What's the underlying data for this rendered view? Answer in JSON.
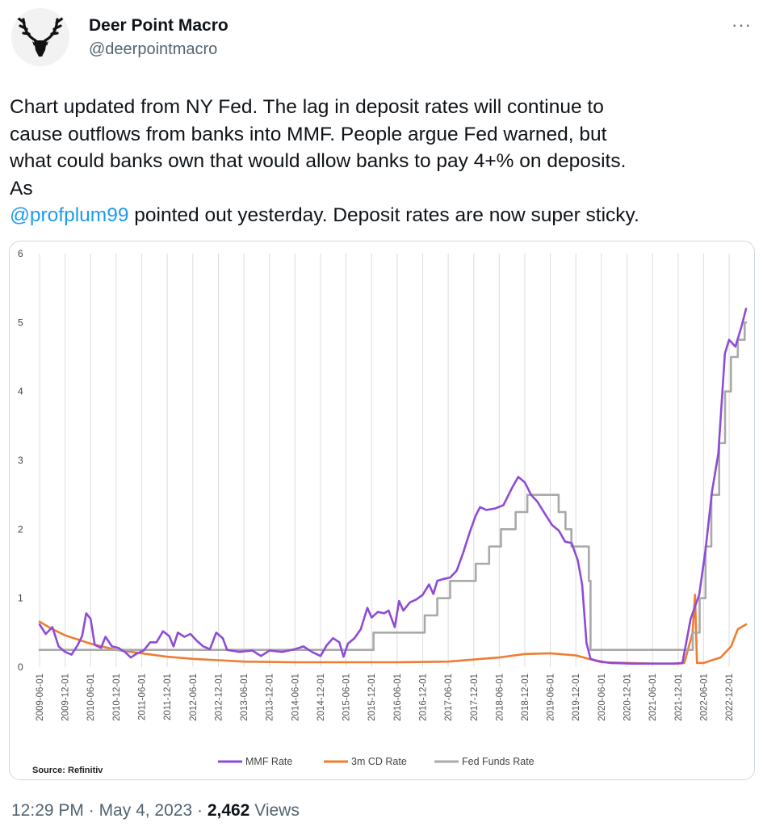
{
  "author": {
    "name": "Deer Point Macro",
    "handle": "@deerpointmacro",
    "avatar_icon": "deer-head-icon"
  },
  "more_icon": "more-icon",
  "tweet": {
    "line1": "Chart updated  from NY Fed. The lag in deposit rates will continue to",
    "line2": "cause outflows from banks into MMF. People argue Fed warned, but",
    "line3": "what could banks own that would allow banks to pay 4+% on deposits.",
    "line4": "As",
    "mention": "@profplum99",
    "line5_rest": " pointed out yesterday. Deposit rates are now super sticky."
  },
  "meta": {
    "time": "12:29 PM",
    "sep1": " · ",
    "date": "May 4, 2023",
    "sep2": " · ",
    "views_count": "2,462",
    "views_label": " Views"
  },
  "chart_data": {
    "type": "line",
    "source": "Source: Refinitiv",
    "ylim": [
      0,
      6
    ],
    "yticks": [
      "0",
      "1",
      "2",
      "3",
      "4",
      "5",
      "6"
    ],
    "xlim": [
      "2009-06-01",
      "2023-04-01"
    ],
    "xticks": [
      "2009-06-01",
      "2009-12-01",
      "2010-06-01",
      "2010-12-01",
      "2011-06-01",
      "2011-12-01",
      "2012-06-01",
      "2012-12-01",
      "2013-06-01",
      "2013-12-01",
      "2014-06-01",
      "2014-12-01",
      "2015-06-01",
      "2015-12-01",
      "2016-06-01",
      "2016-12-01",
      "2017-06-01",
      "2017-12-01",
      "2018-06-01",
      "2018-12-01",
      "2019-06-01",
      "2019-12-01",
      "2020-06-01",
      "2020-12-01",
      "2021-06-01",
      "2021-12-01",
      "2022-06-01",
      "2022-12-01"
    ],
    "grid": "vertical",
    "legend_position": "bottom",
    "series": [
      {
        "name": "MMF Rate",
        "color": "#8e4bd6",
        "points": [
          [
            "2009-06-01",
            0.62
          ],
          [
            "2009-07-15",
            0.48
          ],
          [
            "2009-09-01",
            0.58
          ],
          [
            "2009-10-15",
            0.3
          ],
          [
            "2009-12-01",
            0.22
          ],
          [
            "2010-01-15",
            0.18
          ],
          [
            "2010-03-01",
            0.32
          ],
          [
            "2010-04-01",
            0.45
          ],
          [
            "2010-05-01",
            0.78
          ],
          [
            "2010-06-01",
            0.7
          ],
          [
            "2010-07-01",
            0.32
          ],
          [
            "2010-08-15",
            0.28
          ],
          [
            "2010-09-15",
            0.44
          ],
          [
            "2010-11-01",
            0.3
          ],
          [
            "2010-12-15",
            0.28
          ],
          [
            "2011-02-01",
            0.22
          ],
          [
            "2011-03-15",
            0.14
          ],
          [
            "2011-05-01",
            0.2
          ],
          [
            "2011-06-15",
            0.24
          ],
          [
            "2011-08-01",
            0.36
          ],
          [
            "2011-09-15",
            0.36
          ],
          [
            "2011-11-01",
            0.52
          ],
          [
            "2011-12-15",
            0.45
          ],
          [
            "2012-01-15",
            0.3
          ],
          [
            "2012-02-15",
            0.5
          ],
          [
            "2012-04-01",
            0.44
          ],
          [
            "2012-05-15",
            0.48
          ],
          [
            "2012-07-01",
            0.38
          ],
          [
            "2012-08-15",
            0.3
          ],
          [
            "2012-10-01",
            0.26
          ],
          [
            "2012-11-15",
            0.5
          ],
          [
            "2013-01-01",
            0.42
          ],
          [
            "2013-02-01",
            0.25
          ],
          [
            "2013-05-01",
            0.22
          ],
          [
            "2013-08-01",
            0.24
          ],
          [
            "2013-10-01",
            0.16
          ],
          [
            "2013-12-01",
            0.24
          ],
          [
            "2014-03-01",
            0.22
          ],
          [
            "2014-06-01",
            0.26
          ],
          [
            "2014-08-01",
            0.3
          ],
          [
            "2014-10-01",
            0.22
          ],
          [
            "2014-12-01",
            0.16
          ],
          [
            "2015-01-15",
            0.32
          ],
          [
            "2015-03-01",
            0.42
          ],
          [
            "2015-04-15",
            0.36
          ],
          [
            "2015-05-15",
            0.15
          ],
          [
            "2015-06-15",
            0.34
          ],
          [
            "2015-08-01",
            0.42
          ],
          [
            "2015-09-15",
            0.55
          ],
          [
            "2015-11-01",
            0.86
          ],
          [
            "2015-12-01",
            0.72
          ],
          [
            "2016-01-15",
            0.8
          ],
          [
            "2016-03-01",
            0.78
          ],
          [
            "2016-04-01",
            0.82
          ],
          [
            "2016-05-15",
            0.58
          ],
          [
            "2016-06-15",
            0.96
          ],
          [
            "2016-07-15",
            0.82
          ],
          [
            "2016-09-01",
            0.94
          ],
          [
            "2016-10-15",
            0.98
          ],
          [
            "2016-12-01",
            1.05
          ],
          [
            "2017-01-15",
            1.2
          ],
          [
            "2017-02-15",
            1.06
          ],
          [
            "2017-03-15",
            1.25
          ],
          [
            "2017-05-01",
            1.28
          ],
          [
            "2017-06-15",
            1.3
          ],
          [
            "2017-08-01",
            1.4
          ],
          [
            "2017-09-15",
            1.65
          ],
          [
            "2017-11-01",
            1.95
          ],
          [
            "2017-12-15",
            2.2
          ],
          [
            "2018-01-15",
            2.32
          ],
          [
            "2018-03-01",
            2.28
          ],
          [
            "2018-05-01",
            2.3
          ],
          [
            "2018-07-01",
            2.35
          ],
          [
            "2018-09-01",
            2.6
          ],
          [
            "2018-10-15",
            2.76
          ],
          [
            "2018-12-01",
            2.68
          ],
          [
            "2019-01-15",
            2.5
          ],
          [
            "2019-03-01",
            2.4
          ],
          [
            "2019-05-01",
            2.2
          ],
          [
            "2019-06-15",
            2.06
          ],
          [
            "2019-08-01",
            1.98
          ],
          [
            "2019-09-15",
            1.82
          ],
          [
            "2019-11-01",
            1.8
          ],
          [
            "2019-12-15",
            1.55
          ],
          [
            "2020-01-15",
            1.2
          ],
          [
            "2020-02-15",
            0.35
          ],
          [
            "2020-03-15",
            0.12
          ],
          [
            "2020-04-15",
            0.1
          ],
          [
            "2020-06-01",
            0.08
          ],
          [
            "2020-08-01",
            0.06
          ],
          [
            "2021-01-01",
            0.05
          ],
          [
            "2021-06-01",
            0.05
          ],
          [
            "2021-11-01",
            0.05
          ],
          [
            "2022-01-01",
            0.06
          ],
          [
            "2022-03-01",
            0.7
          ],
          [
            "2022-05-01",
            1.05
          ],
          [
            "2022-06-15",
            1.7
          ],
          [
            "2022-08-01",
            2.55
          ],
          [
            "2022-09-15",
            3.1
          ],
          [
            "2022-11-01",
            4.55
          ],
          [
            "2022-12-01",
            4.75
          ],
          [
            "2023-01-15",
            4.65
          ],
          [
            "2023-03-01",
            4.95
          ],
          [
            "2023-04-01",
            5.2
          ]
        ]
      },
      {
        "name": "3m CD Rate",
        "color": "#ee7d31",
        "points": [
          [
            "2009-06-01",
            0.66
          ],
          [
            "2009-09-01",
            0.55
          ],
          [
            "2009-12-01",
            0.46
          ],
          [
            "2010-06-01",
            0.34
          ],
          [
            "2010-12-01",
            0.25
          ],
          [
            "2011-06-01",
            0.2
          ],
          [
            "2011-12-01",
            0.15
          ],
          [
            "2012-06-01",
            0.12
          ],
          [
            "2012-12-01",
            0.1
          ],
          [
            "2013-06-01",
            0.08
          ],
          [
            "2014-06-01",
            0.07
          ],
          [
            "2015-06-01",
            0.07
          ],
          [
            "2016-06-01",
            0.07
          ],
          [
            "2017-06-01",
            0.08
          ],
          [
            "2018-06-01",
            0.14
          ],
          [
            "2018-12-01",
            0.19
          ],
          [
            "2019-06-01",
            0.2
          ],
          [
            "2019-12-01",
            0.17
          ],
          [
            "2020-03-01",
            0.12
          ],
          [
            "2020-06-01",
            0.07
          ],
          [
            "2021-06-01",
            0.05
          ],
          [
            "2021-12-01",
            0.05
          ],
          [
            "2022-01-15",
            0.06
          ],
          [
            "2022-03-15",
            0.5
          ],
          [
            "2022-04-01",
            1.05
          ],
          [
            "2022-04-15",
            0.06
          ],
          [
            "2022-06-01",
            0.06
          ],
          [
            "2022-10-01",
            0.14
          ],
          [
            "2022-12-15",
            0.3
          ],
          [
            "2023-02-01",
            0.55
          ],
          [
            "2023-04-01",
            0.62
          ]
        ]
      },
      {
        "name": "Fed Funds Rate",
        "color": "#a9a9a9",
        "points": [
          [
            "2009-06-01",
            0.25
          ],
          [
            "2015-12-15",
            0.25
          ],
          [
            "2015-12-15",
            0.5
          ],
          [
            "2016-12-15",
            0.5
          ],
          [
            "2016-12-15",
            0.75
          ],
          [
            "2017-03-15",
            0.75
          ],
          [
            "2017-03-15",
            1.0
          ],
          [
            "2017-06-15",
            1.0
          ],
          [
            "2017-06-15",
            1.25
          ],
          [
            "2017-12-15",
            1.25
          ],
          [
            "2017-12-15",
            1.5
          ],
          [
            "2018-03-21",
            1.5
          ],
          [
            "2018-03-21",
            1.75
          ],
          [
            "2018-06-13",
            1.75
          ],
          [
            "2018-06-13",
            2.0
          ],
          [
            "2018-09-26",
            2.0
          ],
          [
            "2018-09-26",
            2.25
          ],
          [
            "2018-12-19",
            2.25
          ],
          [
            "2018-12-19",
            2.5
          ],
          [
            "2019-07-31",
            2.5
          ],
          [
            "2019-07-31",
            2.25
          ],
          [
            "2019-09-18",
            2.25
          ],
          [
            "2019-09-18",
            2.0
          ],
          [
            "2019-10-30",
            2.0
          ],
          [
            "2019-10-30",
            1.75
          ],
          [
            "2020-03-03",
            1.75
          ],
          [
            "2020-03-03",
            1.25
          ],
          [
            "2020-03-15",
            1.25
          ],
          [
            "2020-03-15",
            0.25
          ],
          [
            "2022-03-16",
            0.25
          ],
          [
            "2022-03-16",
            0.5
          ],
          [
            "2022-05-04",
            0.5
          ],
          [
            "2022-05-04",
            1.0
          ],
          [
            "2022-06-15",
            1.0
          ],
          [
            "2022-06-15",
            1.75
          ],
          [
            "2022-07-27",
            1.75
          ],
          [
            "2022-07-27",
            2.5
          ],
          [
            "2022-09-21",
            2.5
          ],
          [
            "2022-09-21",
            3.25
          ],
          [
            "2022-11-02",
            3.25
          ],
          [
            "2022-11-02",
            4.0
          ],
          [
            "2022-12-14",
            4.0
          ],
          [
            "2022-12-14",
            4.5
          ],
          [
            "2023-02-01",
            4.5
          ],
          [
            "2023-02-01",
            4.75
          ],
          [
            "2023-03-22",
            4.75
          ],
          [
            "2023-03-22",
            5.0
          ],
          [
            "2023-04-01",
            5.0
          ]
        ]
      }
    ]
  }
}
